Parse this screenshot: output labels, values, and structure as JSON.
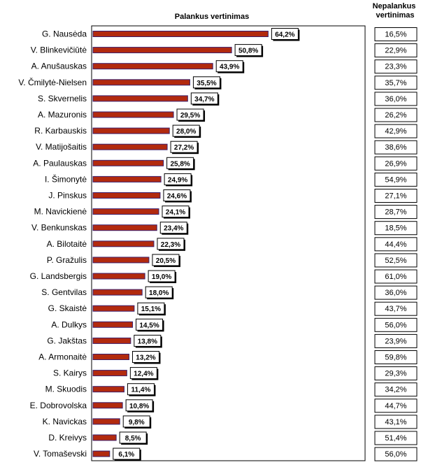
{
  "chart_data": {
    "type": "bar",
    "orientation": "horizontal",
    "title": "Palankus vertinimas",
    "side_column_title": "Nepalankus vertinimas",
    "categories": [
      "G. Nausėda",
      "V. Blinkevičiūtė",
      "A. Anušauskas",
      "V. Čmilytė-Nielsen",
      "S. Skvernelis",
      "A. Mazuronis",
      "R. Karbauskis",
      "V. Matijošaitis",
      "A. Paulauskas",
      "I. Šimonytė",
      "J. Pinskus",
      "M. Navickienė",
      "V. Benkunskas",
      "A. Bilotaitė",
      "P. Gražulis",
      "G. Landsbergis",
      "S. Gentvilas",
      "G. Skaistė",
      "A. Dulkys",
      "G. Jakštas",
      "A. Armonaitė",
      "S. Kairys",
      "M. Skuodis",
      "E. Dobrovolska",
      "K. Navickas",
      "D. Kreivys",
      "V. Tomaševski"
    ],
    "series": [
      {
        "name": "Palankus vertinimas",
        "values": [
          64.2,
          50.8,
          43.9,
          35.5,
          34.7,
          29.5,
          28.0,
          27.2,
          25.8,
          24.9,
          24.6,
          24.1,
          23.4,
          22.3,
          20.5,
          19.0,
          18.0,
          15.1,
          14.5,
          13.8,
          13.2,
          12.4,
          11.4,
          10.8,
          9.8,
          8.5,
          6.1
        ],
        "labels": [
          "64,2%",
          "50,8%",
          "43,9%",
          "35,5%",
          "34,7%",
          "29,5%",
          "28,0%",
          "27,2%",
          "25,8%",
          "24,9%",
          "24,6%",
          "24,1%",
          "23,4%",
          "22,3%",
          "20,5%",
          "19,0%",
          "18,0%",
          "15,1%",
          "14,5%",
          "13,8%",
          "13,2%",
          "12,4%",
          "11,4%",
          "10,8%",
          "9,8%",
          "8,5%",
          "6,1%"
        ],
        "color": "#b22a0e"
      },
      {
        "name": "Nepalankus vertinimas",
        "values": [
          16.5,
          22.9,
          23.3,
          35.7,
          36.0,
          26.2,
          42.9,
          38.6,
          26.9,
          54.9,
          27.1,
          28.7,
          18.5,
          44.4,
          52.5,
          61.0,
          36.0,
          43.7,
          56.0,
          23.9,
          59.8,
          29.3,
          34.2,
          44.7,
          43.1,
          51.4,
          56.0
        ],
        "labels": [
          "16,5%",
          "22,9%",
          "23,3%",
          "35,7%",
          "36,0%",
          "26,2%",
          "42,9%",
          "38,6%",
          "26,9%",
          "54,9%",
          "27,1%",
          "28,7%",
          "18,5%",
          "44,4%",
          "52,5%",
          "61,0%",
          "36,0%",
          "43,7%",
          "56,0%",
          "23,9%",
          "59,8%",
          "29,3%",
          "34,2%",
          "44,7%",
          "43,1%",
          "51,4%",
          "56,0%"
        ]
      }
    ],
    "xlim": [
      0,
      100
    ],
    "grid": false,
    "legend": "none",
    "colors": {
      "bar_fill": "#b22a0e",
      "bar_edge": "#3a1f6e",
      "label_shadow": "#000000"
    }
  }
}
